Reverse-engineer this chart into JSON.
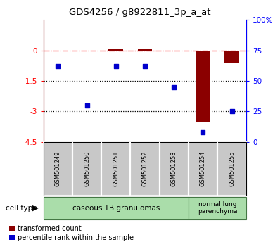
{
  "title": "GDS4256 / g8922811_3p_a_at",
  "samples": [
    "GSM501249",
    "GSM501250",
    "GSM501251",
    "GSM501252",
    "GSM501253",
    "GSM501254",
    "GSM501255"
  ],
  "transformed_counts": [
    -0.05,
    -0.05,
    0.1,
    0.05,
    -0.05,
    -3.5,
    -0.65
  ],
  "percentile_ranks": [
    62,
    30,
    62,
    62,
    45,
    8,
    25
  ],
  "ylim_left": [
    -4.5,
    1.5
  ],
  "ylim_right": [
    0,
    100
  ],
  "yticks_left": [
    0,
    -1.5,
    -3,
    -4.5
  ],
  "yticks_right": [
    0,
    25,
    50,
    75,
    100
  ],
  "ytick_labels_left": [
    "0",
    "-1.5",
    "-3",
    "-4.5"
  ],
  "ytick_labels_right": [
    "0",
    "25",
    "50",
    "75",
    "100%"
  ],
  "bar_color": "#8B0000",
  "scatter_color": "#0000CC",
  "cell_type_label": "cell type",
  "group1_label": "caseous TB granulomas",
  "group2_label": "normal lung\nparenchyma",
  "group1_color": "#aaddaa",
  "group2_color": "#aaddaa",
  "sample_box_color": "#C8C8C8",
  "legend_red_label": "transformed count",
  "legend_blue_label": "percentile rank within the sample"
}
